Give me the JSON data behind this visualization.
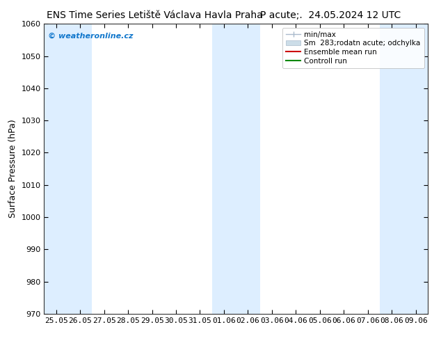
{
  "title_left": "ENS Time Series Letiště Václava Havla Praha",
  "title_right": "P acute;.  24.05.2024 12 UTC",
  "ylabel": "Surface Pressure (hPa)",
  "ylim": [
    970,
    1060
  ],
  "yticks": [
    970,
    980,
    990,
    1000,
    1010,
    1020,
    1030,
    1040,
    1050,
    1060
  ],
  "xtick_labels": [
    "25.05",
    "26.05",
    "27.05",
    "28.05",
    "29.05",
    "30.05",
    "31.05",
    "01.06",
    "02.06",
    "03.06",
    "04.06",
    "05.06",
    "06.06",
    "07.06",
    "08.06",
    "09.06"
  ],
  "band_color": "#ddeeff",
  "band_indices": [
    0,
    1,
    7,
    8,
    14,
    15
  ],
  "background_color": "#ffffff",
  "plot_bg_color": "#ffffff",
  "watermark": "© weatheronline.cz",
  "watermark_color": "#1177cc",
  "legend_item1": "min/max",
  "legend_item2": "Sm  283;rodatn acute; odchylka",
  "legend_item3": "Ensemble mean run",
  "legend_item4": "Controll run",
  "legend_color1": "#aabbcc",
  "legend_color2": "#ccdde8",
  "legend_color3": "#cc0000",
  "legend_color4": "#008800",
  "title_fontsize": 10,
  "axis_label_fontsize": 9,
  "tick_fontsize": 8,
  "legend_fontsize": 7.5
}
